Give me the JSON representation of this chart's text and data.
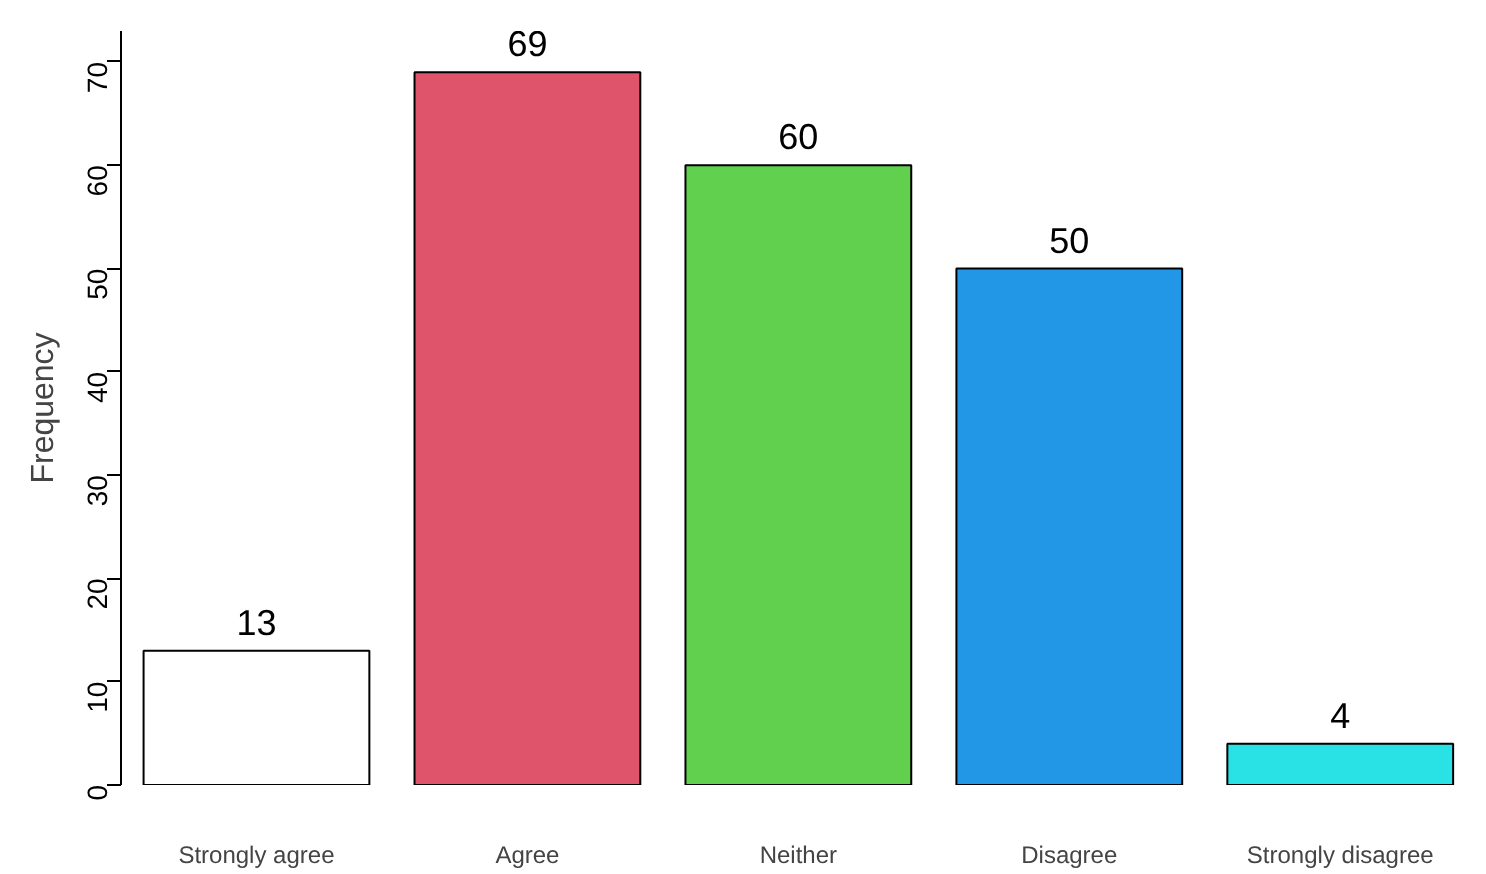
{
  "chart_data": {
    "type": "bar",
    "ylabel": "Frequency",
    "categories": [
      "Strongly agree",
      "Agree",
      "Neither",
      "Disagree",
      "Strongly disagree"
    ],
    "values": [
      13,
      69,
      60,
      50,
      4
    ],
    "colors": [
      "#ffffff",
      "#df536b",
      "#61d04f",
      "#2297e6",
      "#28e2e5"
    ],
    "ylim": [
      0,
      73
    ],
    "yticks": [
      0,
      10,
      20,
      30,
      40,
      50,
      60,
      70
    ],
    "data_labels": true,
    "grid": false
  }
}
